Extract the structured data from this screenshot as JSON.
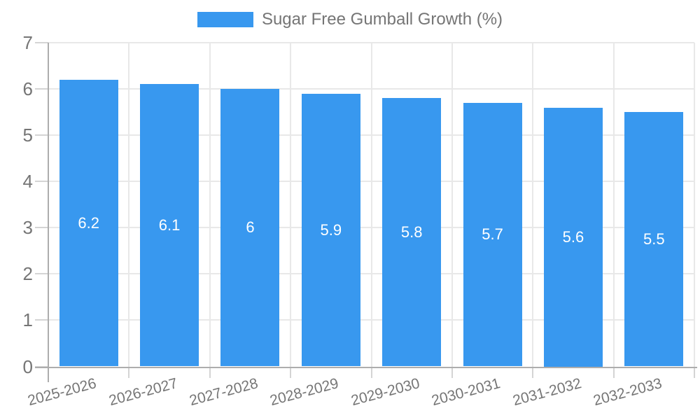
{
  "chart_data": {
    "type": "bar",
    "legend": {
      "label": "Sugar Free Gumball Growth (%)",
      "position": "top"
    },
    "categories": [
      "2025-2026",
      "2026-2027",
      "2027-2028",
      "2028-2029",
      "2029-2030",
      "2030-2031",
      "2031-2032",
      "2032-2033"
    ],
    "series": [
      {
        "name": "Sugar Free Gumball Growth (%)",
        "values": [
          6.2,
          6.1,
          6,
          5.9,
          5.8,
          5.7,
          5.6,
          5.5
        ],
        "value_labels": [
          "6.2",
          "6.1",
          "6",
          "5.9",
          "5.8",
          "5.7",
          "5.6",
          "5.5"
        ]
      }
    ],
    "xlabel": "",
    "ylabel": "",
    "ylim": [
      0,
      7
    ],
    "y_tick_labels": [
      "0",
      "1",
      "2",
      "3",
      "4",
      "5",
      "6",
      "7"
    ],
    "grid": true,
    "x_label_rotation_deg": -15,
    "colors": {
      "bar": "#3898EF",
      "gridline": "#E8E8E8",
      "axis": "#ADADAD",
      "tick": "#D4D4D4",
      "text": "#757575",
      "bar_label": "#FFFFFF",
      "background": "#FFFFFF"
    }
  }
}
